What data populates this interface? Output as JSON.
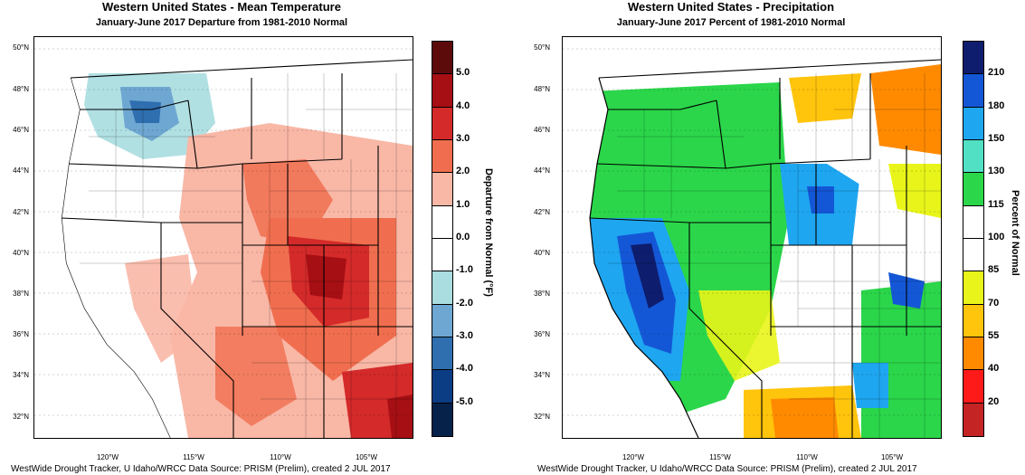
{
  "left": {
    "title": "Western United States - Mean Temperature",
    "subtitle": "January-June 2017  Departure from 1981-2010 Normal",
    "legend_label": "Departure from Normal (°F)",
    "legend_ticks": [
      "5.0",
      "4.0",
      "3.0",
      "2.0",
      "1.0",
      "0.0",
      "-1.0",
      "-2.0",
      "-3.0",
      "-4.0",
      "-5.0"
    ],
    "legend_colors": [
      "#5c0a0a",
      "#a60f14",
      "#d42a2a",
      "#f06e4f",
      "#f9b7a6",
      "#ffffff",
      "#ffffff",
      "#a9dde0",
      "#6ea7d1",
      "#2f6fb0",
      "#0b3d84",
      "#07224a"
    ],
    "credit": "WestWide Drought Tracker, U Idaho/WRCC Data Source: PRISM (Prelim), created  2 JUL 2017"
  },
  "right": {
    "title": "Western United States - Precipitation",
    "subtitle": "January-June 2017  Percent of 1981-2010 Normal",
    "legend_label": "Percent of Normal",
    "legend_ticks": [
      "210",
      "180",
      "150",
      "130",
      "115",
      "100",
      "85",
      "70",
      "55",
      "40",
      "20"
    ],
    "legend_colors": [
      "#0e1d6e",
      "#1457d6",
      "#1ea6f0",
      "#52e0c4",
      "#2bd64a",
      "#ffffff",
      "#ffffff",
      "#e9f51a",
      "#ffc40c",
      "#ff8a00",
      "#ff1a1a",
      "#c42424"
    ],
    "credit": "WestWide Drought Tracker, U Idaho/WRCC Data Source: PRISM (Prelim), created  2 JUL 2017"
  },
  "lat_labels": [
    "50°N",
    "48°N",
    "46°N",
    "44°N",
    "42°N",
    "40°N",
    "38°N",
    "36°N",
    "34°N",
    "32°N"
  ],
  "lon_labels": [
    "120°W",
    "115°W",
    "110°W",
    "105°W"
  ]
}
